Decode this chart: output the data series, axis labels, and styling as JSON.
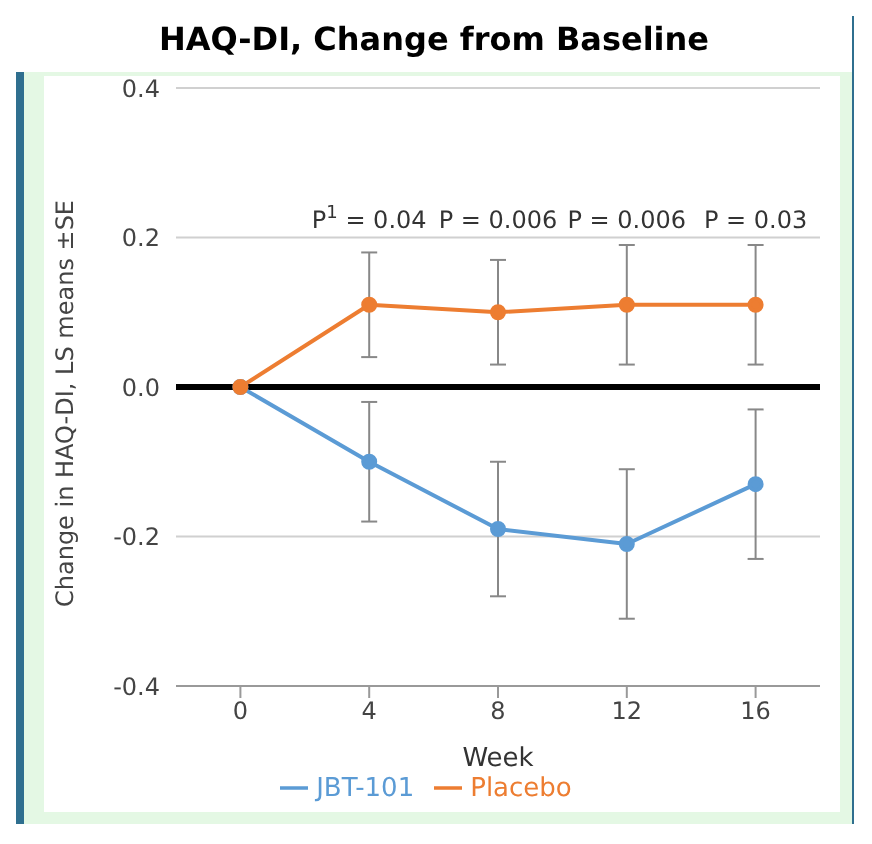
{
  "chart_data": {
    "type": "line",
    "title": "HAQ-DI, Change from Baseline",
    "xlabel": "Week",
    "ylabel": "Change in HAQ-DI, LS means ±SE",
    "categories": [
      "0",
      "4",
      "8",
      "12",
      "16"
    ],
    "series": [
      {
        "name": "JBT-101",
        "color": "#5b9bd5",
        "values": [
          0,
          -0.1,
          -0.19,
          -0.21,
          -0.13
        ],
        "errors": [
          null,
          0.08,
          0.09,
          0.1,
          0.1
        ]
      },
      {
        "name": "Placebo",
        "color": "#ed7d31",
        "values": [
          0,
          0.11,
          0.1,
          0.11,
          0.11
        ],
        "errors": [
          null,
          0.07,
          0.07,
          0.08,
          0.08
        ]
      }
    ],
    "ylim": [
      -0.4,
      0.4
    ],
    "yticks": [
      {
        "value": -0.4,
        "label": "-0.4"
      },
      {
        "value": -0.2,
        "label": "-0.2"
      },
      {
        "value": 0,
        "label": "0.0"
      },
      {
        "value": 0.2,
        "label": "0.2"
      },
      {
        "value": 0.4,
        "label": "0.4"
      }
    ],
    "grid": "y",
    "legend": "bottom",
    "marker": "circle",
    "line_style": "solid",
    "ref_lines": [
      {
        "axis": "y",
        "value": 0,
        "color": "#000000"
      }
    ],
    "annotations": [
      "P$^{1}$ = 0.04",
      "P = 0.006",
      "P = 0.006",
      "P = 0.03"
    ]
  }
}
